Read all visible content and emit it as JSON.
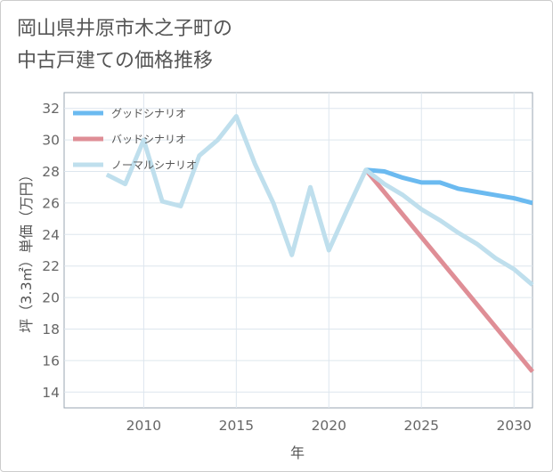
{
  "chart_data": {
    "type": "line",
    "title": "岡山県井原市木之子町の\n中古戸建ての価格推移",
    "xlabel": "年",
    "ylabel": "坪（3.3㎡）単価（万円）",
    "xlim": [
      2005.7,
      2031
    ],
    "ylim": [
      13,
      33
    ],
    "xticks": [
      2010,
      2015,
      2020,
      2025,
      2030
    ],
    "yticks": [
      14,
      16,
      18,
      20,
      22,
      24,
      26,
      28,
      30,
      32
    ],
    "grid": true,
    "legend_position": "top-left",
    "series": [
      {
        "name": "グッドシナリオ",
        "color": "#6bbaf0",
        "x": [
          2022,
          2023,
          2024,
          2025,
          2026,
          2027,
          2028,
          2029,
          2030,
          2031
        ],
        "values": [
          28.1,
          28.0,
          27.6,
          27.3,
          27.3,
          26.9,
          26.7,
          26.5,
          26.3,
          26.0
        ]
      },
      {
        "name": "バッドシナリオ",
        "color": "#df8e96",
        "x": [
          2022,
          2031
        ],
        "values": [
          28.1,
          15.3
        ]
      },
      {
        "name": "ノーマルシナリオ",
        "color": "#bfdfed",
        "x": [
          2008,
          2009,
          2010,
          2011,
          2012,
          2013,
          2014,
          2015,
          2016,
          2017,
          2018,
          2019,
          2020,
          2021,
          2022,
          2023,
          2024,
          2025,
          2026,
          2027,
          2028,
          2029,
          2030,
          2031
        ],
        "values": [
          27.8,
          27.2,
          30.0,
          26.1,
          25.8,
          29.0,
          30.0,
          31.5,
          28.5,
          26.0,
          22.7,
          27.0,
          23.0,
          25.6,
          28.1,
          27.2,
          26.5,
          25.6,
          24.9,
          24.1,
          23.4,
          22.5,
          21.8,
          20.8
        ]
      }
    ]
  }
}
